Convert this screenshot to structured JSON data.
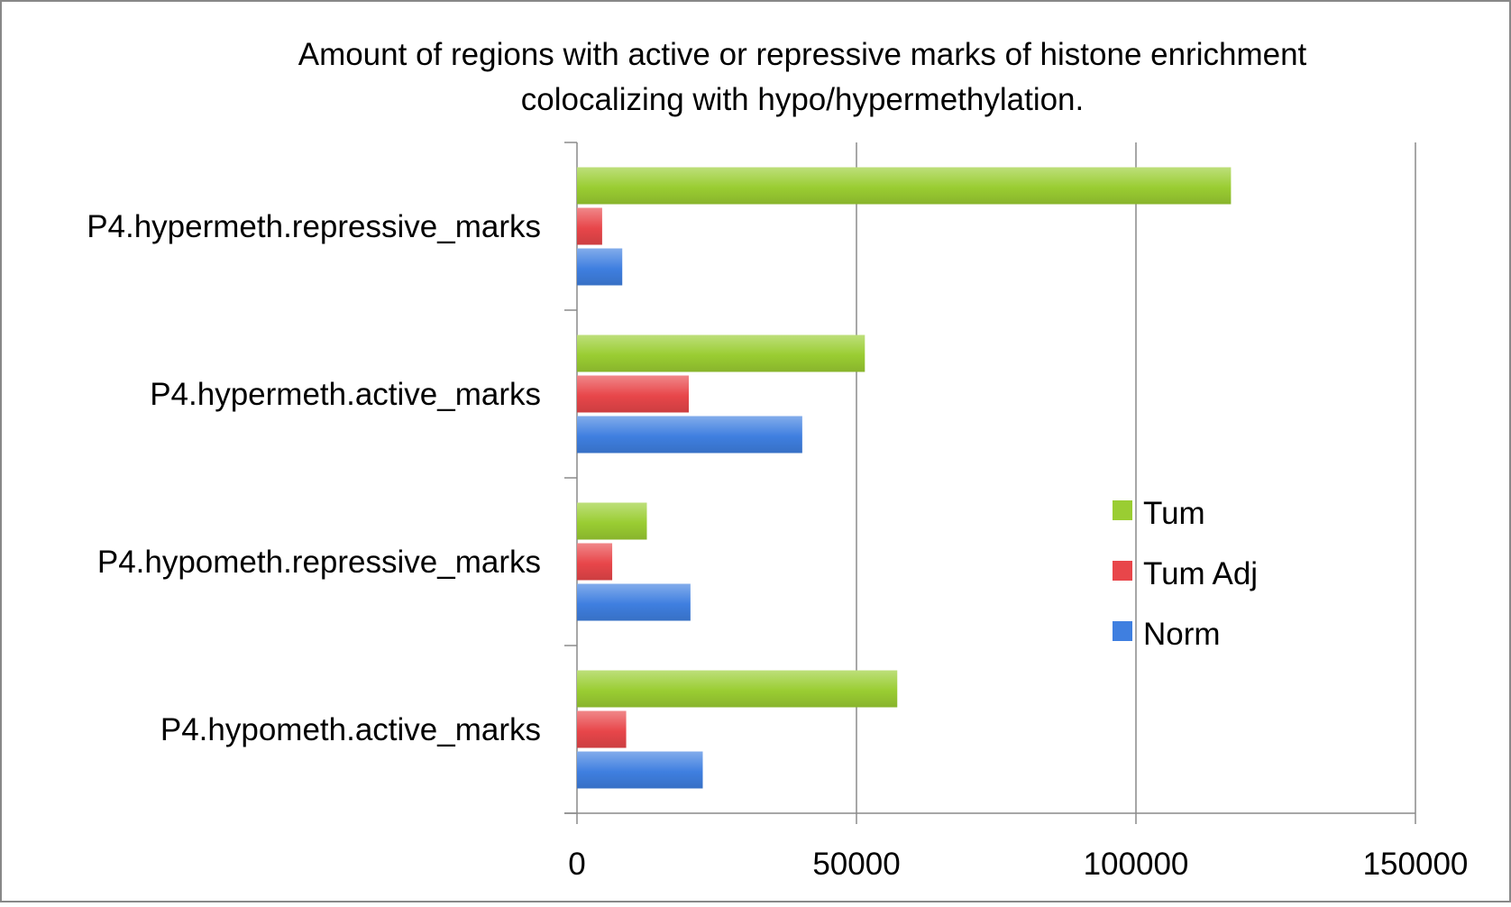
{
  "chart_data": {
    "type": "bar",
    "orientation": "horizontal",
    "title_lines": [
      "Amount of regions with active or repressive marks of histone enrichment",
      "colocalizing with hypo/hypermethylation."
    ],
    "categories": [
      "P4.hypermeth.repressive_marks",
      "P4.hypermeth.active_marks",
      "P4.hypometh.repressive_marks",
      "P4.hypometh.active_marks"
    ],
    "series": [
      {
        "name": "Tum",
        "color": "#9acd32",
        "values": [
          117000,
          51500,
          12500,
          57300
        ]
      },
      {
        "name": "Tum Adj",
        "color": "#e8464a",
        "values": [
          4500,
          20000,
          6300,
          8800
        ]
      },
      {
        "name": "Norm",
        "color": "#3f7fe0",
        "values": [
          8100,
          40300,
          20300,
          22500
        ]
      }
    ],
    "xlim": [
      0,
      150000
    ],
    "x_ticks": [
      0,
      50000,
      100000,
      150000
    ],
    "x_tick_labels": [
      "0",
      "50000",
      "100000",
      "150000"
    ],
    "gridlines": "vertical",
    "legend_position": "right"
  }
}
